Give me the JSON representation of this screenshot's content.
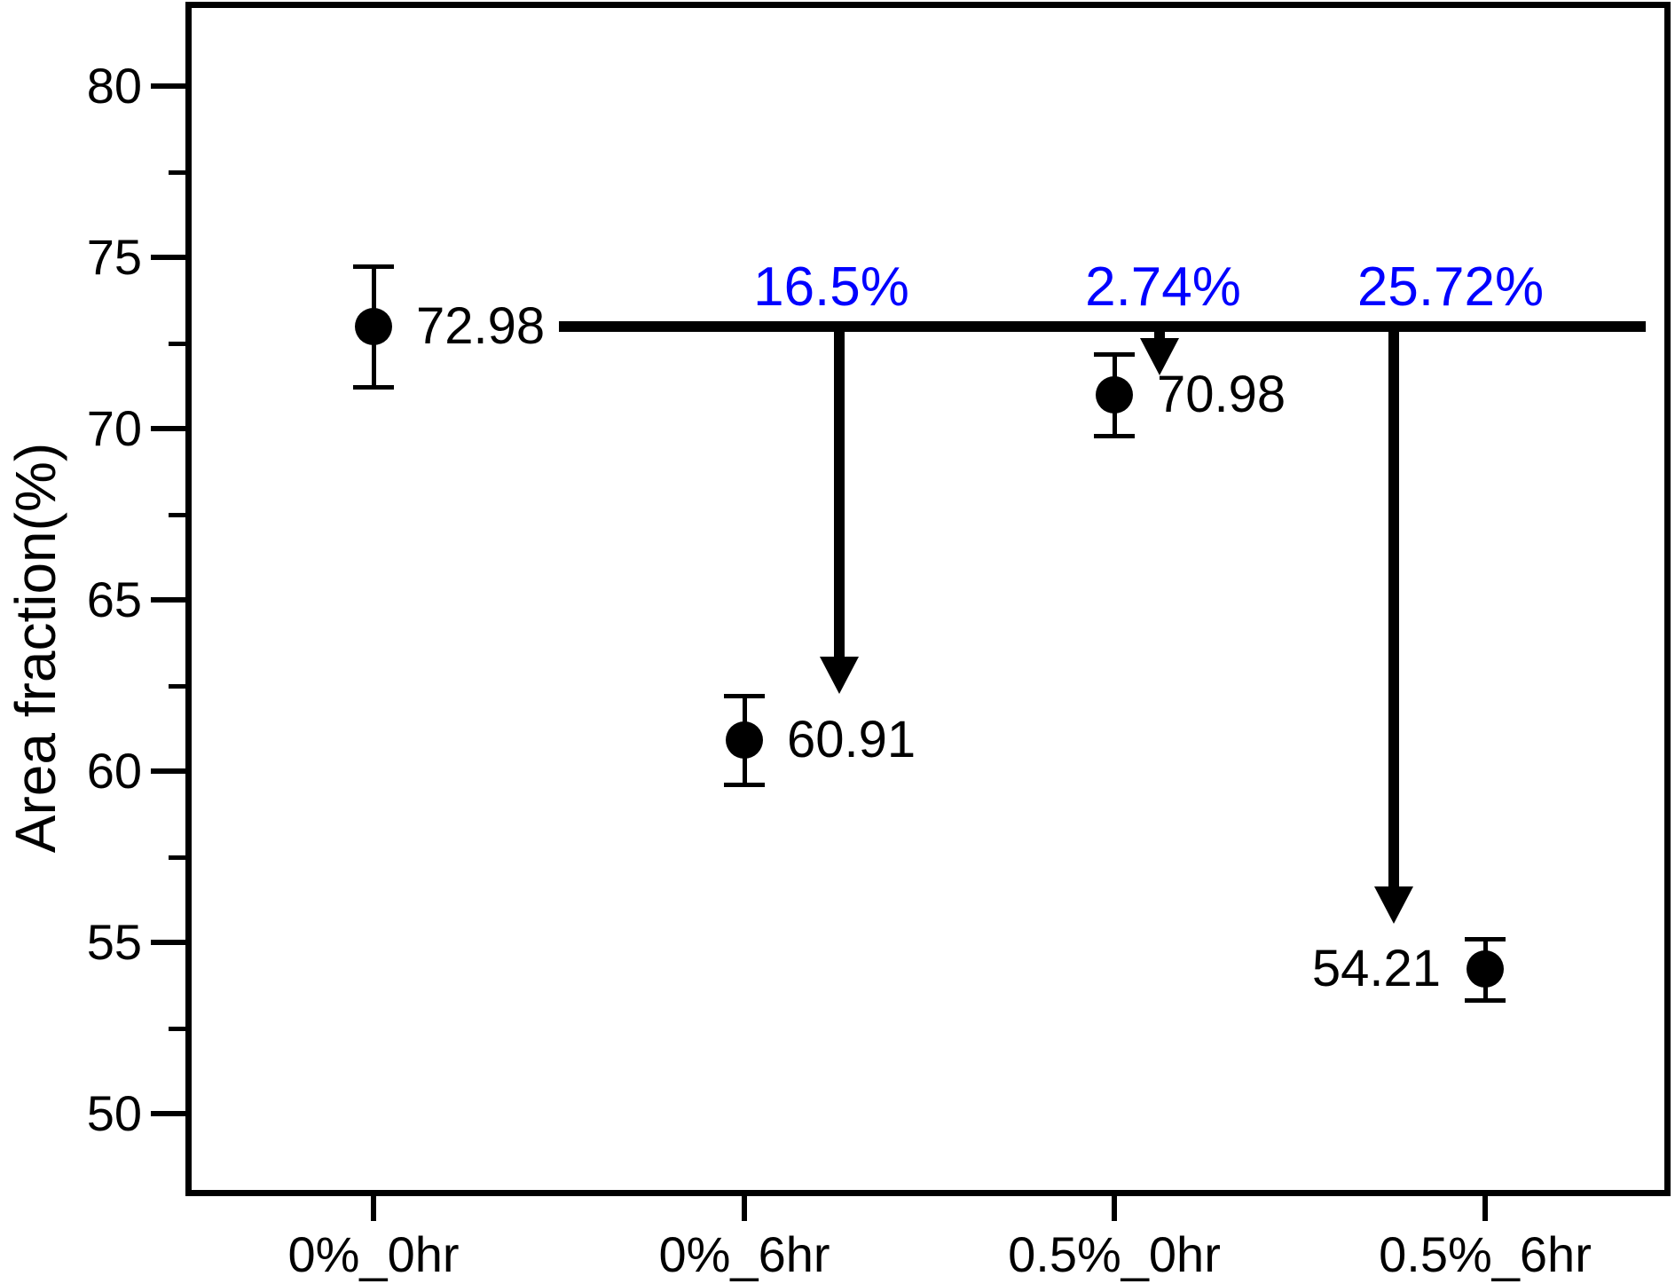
{
  "chart_data": {
    "type": "scatter",
    "title": "",
    "xlabel": "",
    "ylabel": "Area fraction(%)",
    "categories": [
      "0%_0hr",
      "0%_6hr",
      "0.5%_0hr",
      "0.5%_6hr"
    ],
    "series": [
      {
        "name": "Area fraction",
        "marker": "circle",
        "color": "#000000",
        "values": [
          72.98,
          60.91,
          70.98,
          54.21
        ],
        "errors": [
          1.75,
          1.3,
          1.2,
          0.9
        ]
      }
    ],
    "point_labels": [
      {
        "text": "72.98",
        "side": "right"
      },
      {
        "text": "60.91",
        "side": "right"
      },
      {
        "text": "70.98",
        "side": "right"
      },
      {
        "text": "54.21",
        "side": "left"
      }
    ],
    "reference_line": {
      "value": 72.98,
      "color": "#000000"
    },
    "annotations": [
      {
        "text": "16.5%",
        "label_pos": 1.235,
        "arrow_pos": 1.257,
        "arrow_tip_value": 62.25,
        "color": "#0000ff"
      },
      {
        "text": "2.74%",
        "label_pos": 2.131,
        "arrow_pos": 2.122,
        "arrow_tip_value": 71.55,
        "color": "#0000ff"
      },
      {
        "text": "25.72%",
        "label_pos": 2.906,
        "arrow_pos": 2.753,
        "arrow_tip_value": 55.55,
        "color": "#0000ff"
      }
    ],
    "y_axis": {
      "tick_labels": [
        "50",
        "55",
        "60",
        "65",
        "70",
        "75",
        "80"
      ],
      "tick_values": [
        50,
        55,
        60,
        65,
        70,
        75,
        80
      ],
      "minor_tick_values": [
        52.5,
        57.5,
        62.5,
        67.5,
        72.5,
        77.5
      ],
      "ylim": [
        47.7,
        82.4
      ]
    },
    "x_axis": {
      "tick_labels": [
        "0%_0hr",
        "0%_6hr",
        "0.5%_0hr",
        "0.5%_6hr"
      ]
    },
    "grid": false,
    "legend": null,
    "background": "#ffffff"
  }
}
